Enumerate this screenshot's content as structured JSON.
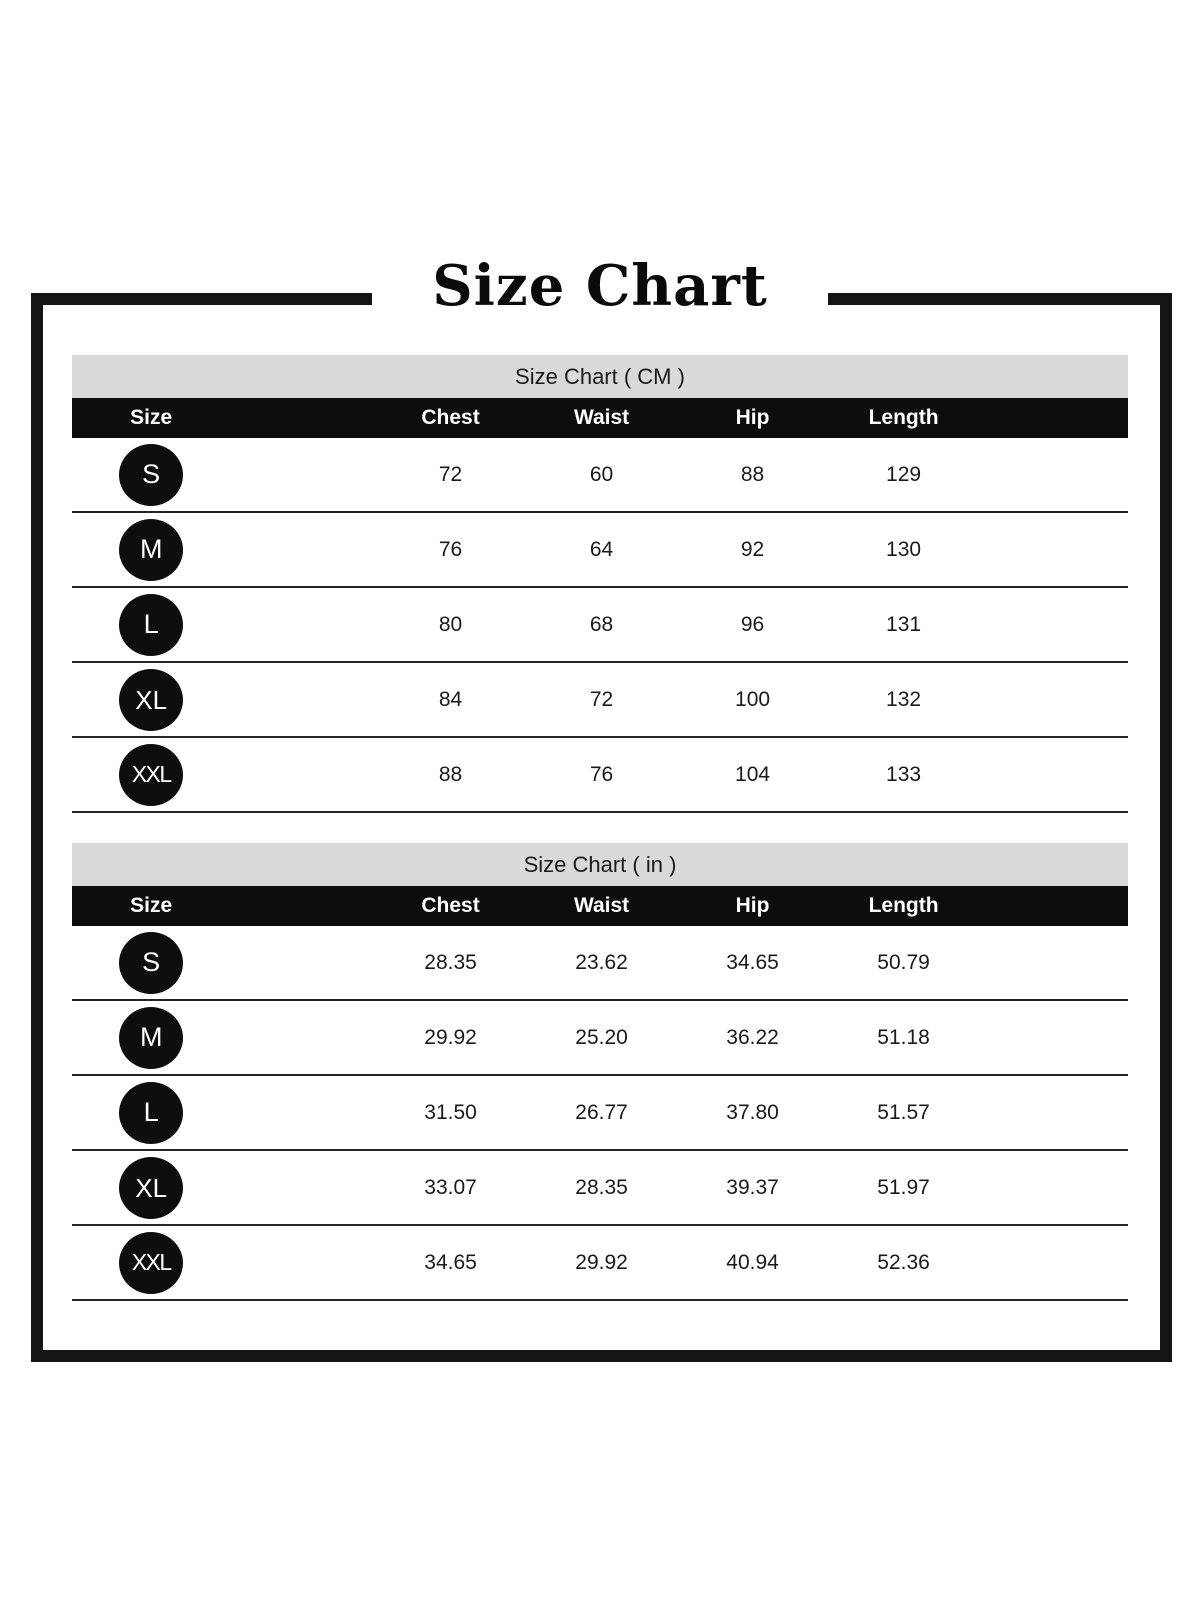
{
  "page_title": "Size Chart",
  "chart_data": [
    {
      "type": "table",
      "title": "Size Chart ( CM )",
      "unit": "CM",
      "columns": [
        "Size",
        "Chest",
        "Waist",
        "Hip",
        "Length"
      ],
      "rows": [
        {
          "size": "S",
          "values": [
            "72",
            "60",
            "88",
            "129"
          ]
        },
        {
          "size": "M",
          "values": [
            "76",
            "64",
            "92",
            "130"
          ]
        },
        {
          "size": "L",
          "values": [
            "80",
            "68",
            "96",
            "131"
          ]
        },
        {
          "size": "XL",
          "values": [
            "84",
            "72",
            "100",
            "132"
          ]
        },
        {
          "size": "XXL",
          "values": [
            "88",
            "76",
            "104",
            "133"
          ]
        }
      ]
    },
    {
      "type": "table",
      "title": "Size Chart ( in )",
      "unit": "in",
      "columns": [
        "Size",
        "Chest",
        "Waist",
        "Hip",
        "Length"
      ],
      "rows": [
        {
          "size": "S",
          "values": [
            "28.35",
            "23.62",
            "34.65",
            "50.79"
          ]
        },
        {
          "size": "M",
          "values": [
            "29.92",
            "25.20",
            "36.22",
            "51.18"
          ]
        },
        {
          "size": "L",
          "values": [
            "31.50",
            "26.77",
            "37.80",
            "51.57"
          ]
        },
        {
          "size": "XL",
          "values": [
            "33.07",
            "28.35",
            "39.37",
            "51.97"
          ]
        },
        {
          "size": "XXL",
          "values": [
            "34.65",
            "29.92",
            "40.94",
            "52.36"
          ]
        }
      ]
    }
  ],
  "colors": {
    "banner_bg": "#d9d9d9",
    "header_bg": "#0d0d0d",
    "header_text": "#ffffff",
    "badge_bg": "#0e0e0e",
    "badge_text": "#ffffff",
    "frame_border": "#141414",
    "body_text": "#1a1a1a",
    "row_divider": "#242424",
    "background": "#ffffff"
  }
}
